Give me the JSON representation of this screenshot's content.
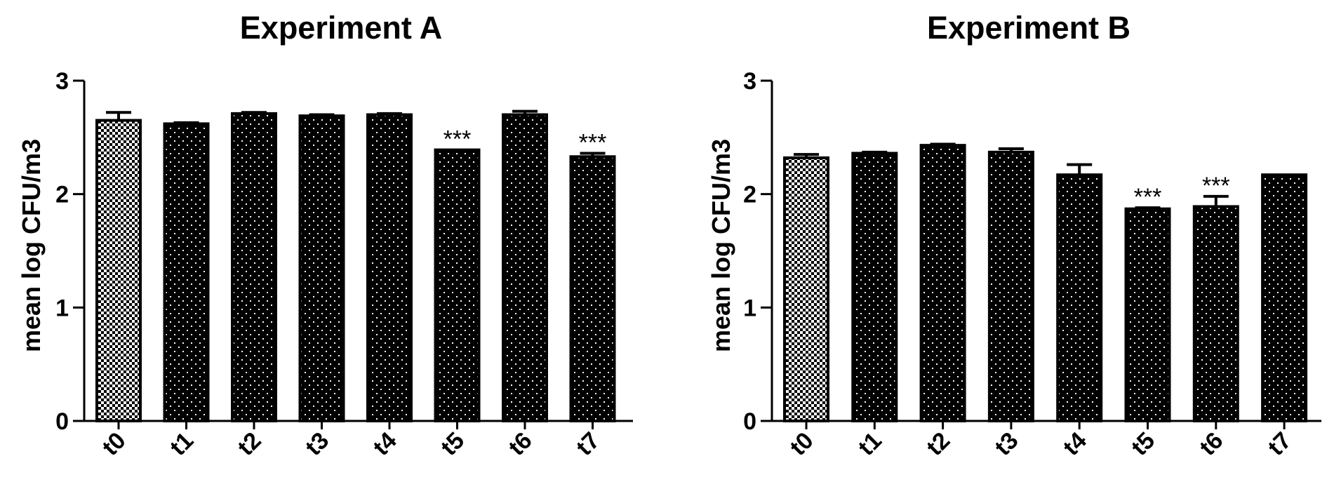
{
  "chart_data": [
    {
      "type": "bar",
      "title": "Experiment A",
      "xlabel": "",
      "ylabel": "mean log CFU/m3",
      "ylim": [
        0,
        3
      ],
      "yticks": [
        "0",
        "1",
        "2",
        "3"
      ],
      "categories": [
        "t0",
        "t1",
        "t2",
        "t3",
        "t4",
        "t5",
        "t6",
        "t7"
      ],
      "values": [
        2.65,
        2.62,
        2.71,
        2.69,
        2.7,
        2.39,
        2.7,
        2.33
      ],
      "errors": [
        0.07,
        0.01,
        0.01,
        0.01,
        0.01,
        0.0,
        0.03,
        0.03
      ],
      "annotations": [
        "",
        "",
        "",
        "",
        "",
        "***",
        "",
        "***"
      ],
      "bar_patterns": [
        "checker",
        "dots",
        "dots",
        "dots",
        "dots",
        "dots",
        "dots",
        "dots"
      ],
      "grid": false,
      "legend": "none"
    },
    {
      "type": "bar",
      "title": "Experiment B",
      "xlabel": "",
      "ylabel": "mean log CFU/m3",
      "ylim": [
        0,
        3
      ],
      "yticks": [
        "0",
        "1",
        "2",
        "3"
      ],
      "categories": [
        "t0",
        "t1",
        "t2",
        "t3",
        "t4",
        "t5",
        "t6",
        "t7"
      ],
      "values": [
        2.32,
        2.36,
        2.43,
        2.37,
        2.17,
        1.87,
        1.89,
        2.17
      ],
      "errors": [
        0.03,
        0.01,
        0.01,
        0.03,
        0.09,
        0.01,
        0.09,
        0.0
      ],
      "annotations": [
        "",
        "",
        "",
        "",
        "",
        "***",
        "***",
        ""
      ],
      "bar_patterns": [
        "checker",
        "dots",
        "dots",
        "dots",
        "dots",
        "dots",
        "dots",
        "dots"
      ],
      "grid": false,
      "legend": "none"
    }
  ],
  "colors": {
    "bar_fill": "#000000",
    "dot": "#ffffff",
    "checker_dark": "#000000",
    "checker_light": "#ffffff",
    "axis": "#000000",
    "text": "#000000"
  }
}
